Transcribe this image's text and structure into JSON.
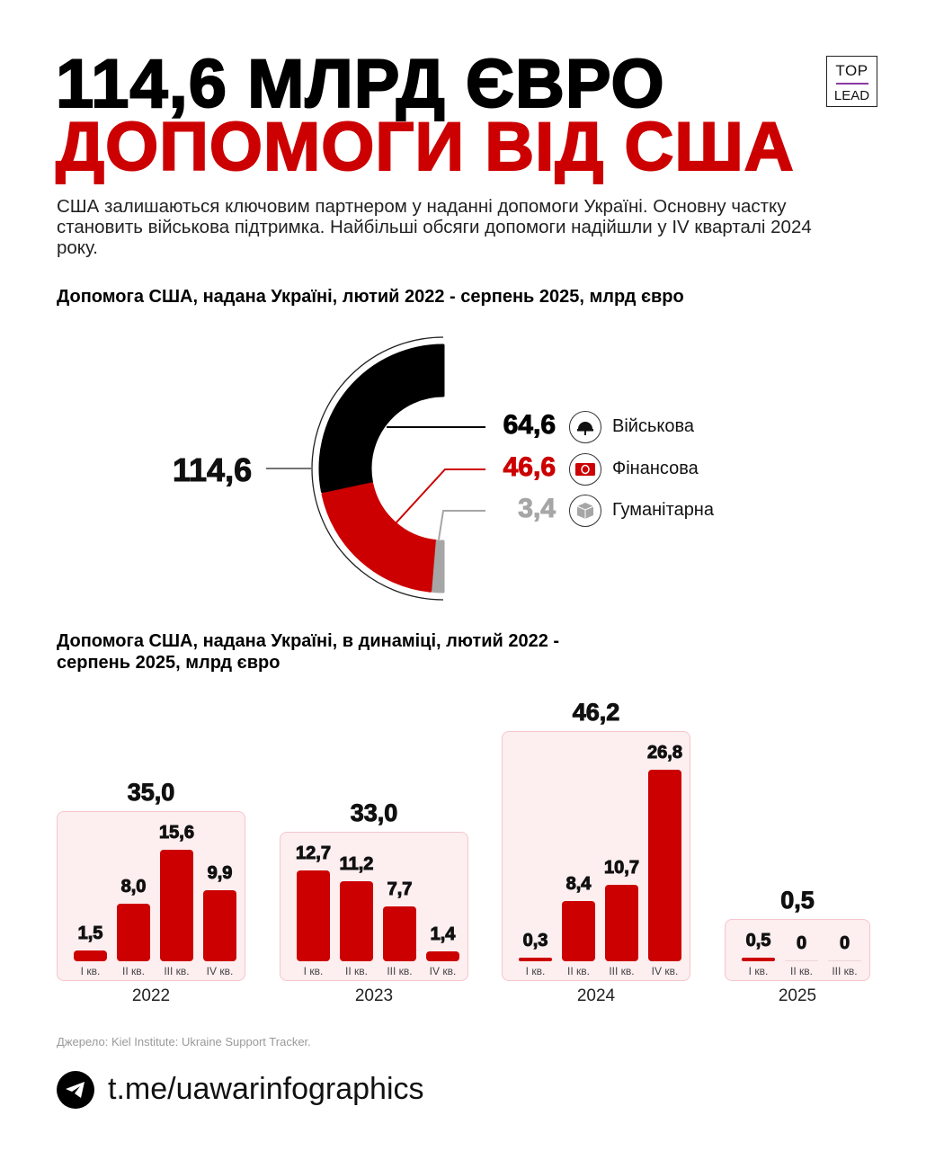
{
  "title": {
    "line1": "114,6 МЛРД ЄВРО",
    "line2": "ДОПОМОГИ ВІД США"
  },
  "logo": {
    "top": "TOP",
    "bottom": "LEAD"
  },
  "intro": "США залишаються ключовим партнером у наданні допомоги Україні. Основну частку становить військова підтримка. Найбільші обсяги допомоги надійшли у IV кварталі 2024 року.",
  "colors": {
    "red": "#cc0000",
    "black": "#000000",
    "grey": "#a6a6a6",
    "box_fill": "#fdeef0",
    "box_border": "#f4c6cc"
  },
  "chart_data": [
    {
      "type": "pie",
      "variant": "half-donut",
      "title": "Допомога США, надана Україні, лютий 2022 - серпень 2025, млрд євро",
      "total_label": "114,6",
      "total": 114.6,
      "slices": [
        {
          "name": "Військова",
          "label": "64,6",
          "value": 64.6,
          "color": "#000000",
          "icon": "military-helmet-icon"
        },
        {
          "name": "Фінансова",
          "label": "46,6",
          "value": 46.6,
          "color": "#cc0000",
          "icon": "banknote-icon"
        },
        {
          "name": "Гуманітарна",
          "label": "3,4",
          "value": 3.4,
          "color": "#a6a6a6",
          "icon": "box-icon"
        }
      ]
    },
    {
      "type": "bar",
      "title": "Допомога США, надана Україні, в динаміці, лютий 2022 - серпень 2025, млрд євро",
      "groups": [
        {
          "year": "2022",
          "total_label": "35,0",
          "categories": [
            "I кв.",
            "II кв.",
            "III кв.",
            "IV кв."
          ],
          "values": [
            1.5,
            8.0,
            15.6,
            9.9
          ],
          "labels": [
            "1,5",
            "8,0",
            "15,6",
            "9,9"
          ]
        },
        {
          "year": "2023",
          "total_label": "33,0",
          "categories": [
            "I кв.",
            "II кв.",
            "III кв.",
            "IV кв."
          ],
          "values": [
            12.7,
            11.2,
            7.7,
            1.4
          ],
          "labels": [
            "12,7",
            "11,2",
            "7,7",
            "1,4"
          ]
        },
        {
          "year": "2024",
          "total_label": "46,2",
          "categories": [
            "I кв.",
            "II кв.",
            "III кв.",
            "IV кв."
          ],
          "values": [
            0.3,
            8.4,
            10.7,
            26.8
          ],
          "labels": [
            "0,3",
            "8,4",
            "10,7",
            "26,8"
          ]
        },
        {
          "year": "2025",
          "total_label": "0,5",
          "categories": [
            "I кв.",
            "II кв.",
            "III кв."
          ],
          "values": [
            0.5,
            0,
            0
          ],
          "labels": [
            "0,5",
            "0",
            "0"
          ]
        }
      ]
    }
  ],
  "source": "Джерело: Kiel Institute: Ukraine Support Tracker.",
  "footer": {
    "link": "t.me/uawarinfographics",
    "icon": "telegram-icon"
  }
}
